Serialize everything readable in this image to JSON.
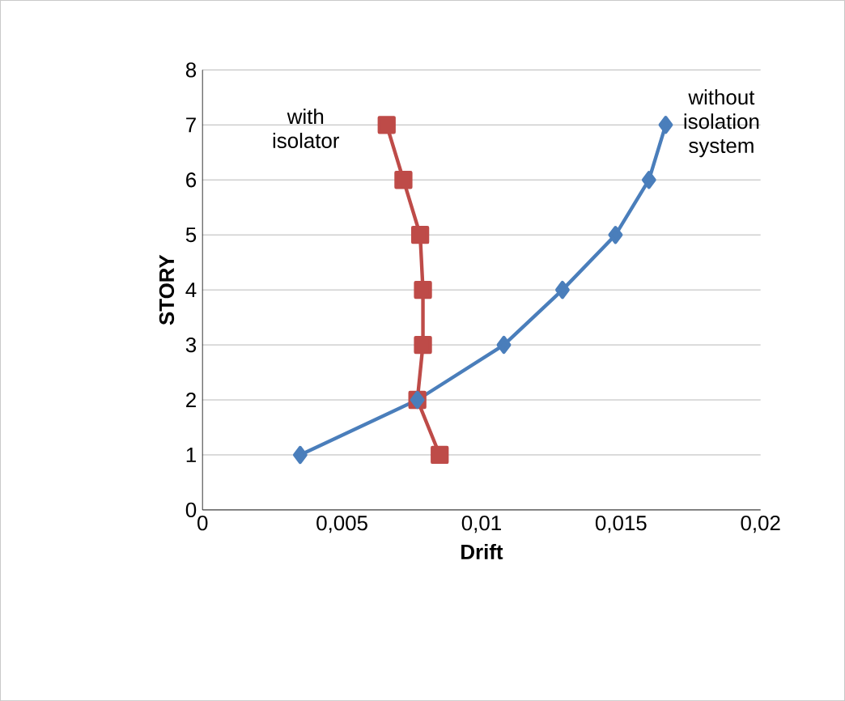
{
  "chart_data": {
    "type": "line",
    "xlabel": "Drift",
    "ylabel": "STORY",
    "series": [
      {
        "name": "without isolation system",
        "color": "#4a7ebb",
        "marker": "diamond",
        "x": [
          0.0035,
          0.0077,
          0.0108,
          0.0129,
          0.0148,
          0.016,
          0.0166
        ],
        "values": [
          1,
          2,
          3,
          4,
          5,
          6,
          7
        ]
      },
      {
        "name": "with isolator",
        "color": "#be4b48",
        "marker": "square",
        "x": [
          0.0085,
          0.0077,
          0.0079,
          0.0079,
          0.0078,
          0.0072,
          0.0066
        ],
        "values": [
          1,
          2,
          3,
          4,
          5,
          6,
          7
        ]
      }
    ],
    "xlim": [
      0,
      0.02
    ],
    "ylim": [
      0,
      8
    ],
    "xticks": [
      0,
      {
        "value": 0.005,
        "label": "0,005"
      },
      {
        "value": 0.01,
        "label": "0,01"
      },
      {
        "value": 0.015,
        "label": "0,015"
      },
      {
        "value": 0.02,
        "label": "0,02"
      }
    ],
    "yticks": [
      0,
      1,
      2,
      3,
      4,
      5,
      6,
      7,
      8
    ],
    "grid": "y",
    "legend": false,
    "line_style": "solid"
  }
}
